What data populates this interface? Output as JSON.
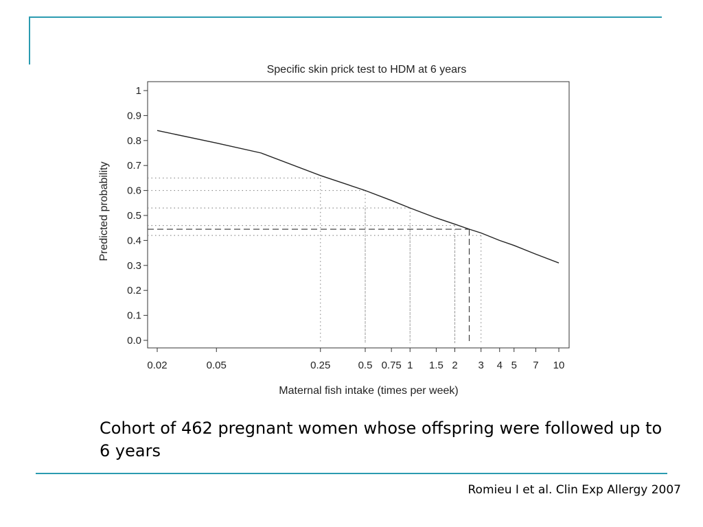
{
  "slide": {
    "caption": "Cohort of 462 pregnant women whose offspring were followed up to 6 years",
    "citation": "Romieu I et al. Clin Exp Allergy 2007",
    "accent_color": "#2a9bb0"
  },
  "chart_data": {
    "type": "line",
    "title": "Specific skin prick test to HDM at 6 years",
    "xlabel": "Maternal fish intake (times per week)",
    "ylabel": "Predicted probability",
    "x_scale": "log",
    "xlim": [
      0.02,
      10
    ],
    "ylim": [
      0,
      1
    ],
    "x_ticks": [
      0.02,
      0.05,
      0.25,
      0.5,
      0.75,
      1,
      1.5,
      2,
      3,
      4,
      5,
      7,
      10
    ],
    "x_tick_labels": [
      "0.02",
      "0.05",
      "0.25",
      "0.5",
      "0.75",
      "1",
      "1.5",
      "2",
      "3",
      "4",
      "5",
      "7",
      "10"
    ],
    "y_ticks": [
      0,
      0.1,
      0.2,
      0.3,
      0.4,
      0.5,
      0.6,
      0.7,
      0.8,
      0.9,
      1
    ],
    "y_tick_labels": [
      "0.0",
      "0.1",
      "0.2",
      "0.3",
      "0.4",
      "0.5",
      "0.6",
      "0.7",
      "0.8",
      "0.9",
      "1"
    ],
    "grid": false,
    "series": [
      {
        "x": [
          0.02,
          0.05,
          0.1,
          0.25,
          0.5,
          0.75,
          1,
          1.5,
          2,
          2.5,
          3,
          4,
          5,
          7,
          10
        ],
        "y": [
          0.84,
          0.79,
          0.75,
          0.66,
          0.6,
          0.56,
          0.53,
          0.49,
          0.465,
          0.445,
          0.43,
          0.4,
          0.38,
          0.345,
          0.31
        ],
        "style": "solid"
      }
    ],
    "reference_lines": [
      {
        "style": "dotted",
        "points": [
          {
            "x": 0.25,
            "y": 0.65
          },
          {
            "x": 0.5,
            "y": 0.6
          },
          {
            "x": 0.5,
            "y": 0.53
          },
          {
            "x": 1,
            "y": 0.53
          },
          {
            "x": 1,
            "y": 0.46
          },
          {
            "x": 2,
            "y": 0.46
          },
          {
            "x": 2,
            "y": 0.42
          },
          {
            "x": 3,
            "y": 0.42
          }
        ]
      },
      {
        "style": "dashed",
        "points": [
          {
            "x": 2.5,
            "y": 0.445
          }
        ]
      }
    ]
  }
}
